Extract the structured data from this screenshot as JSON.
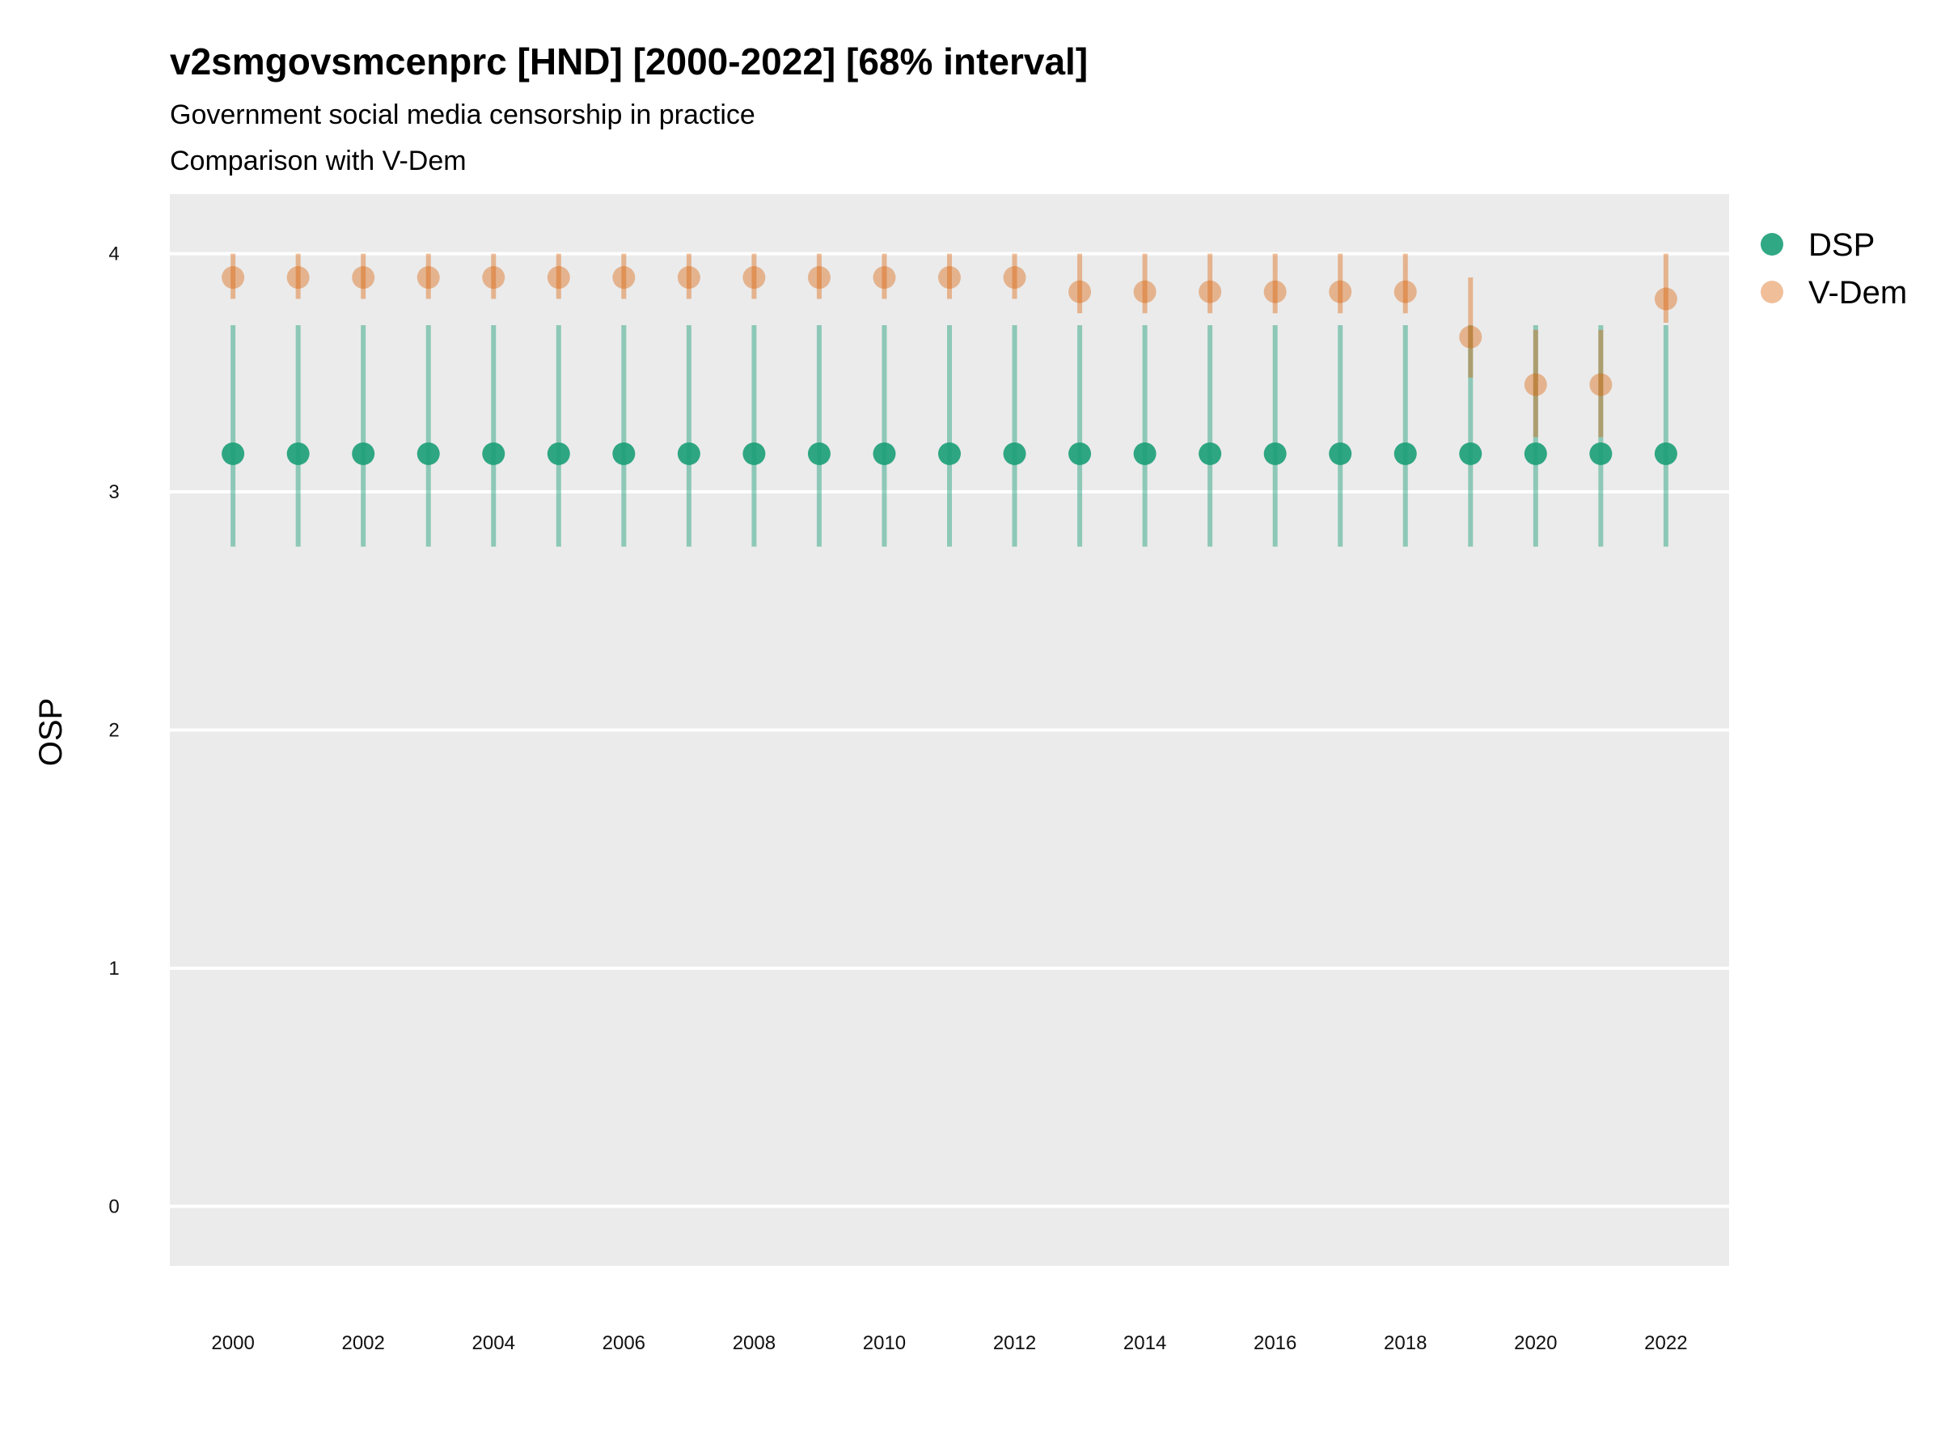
{
  "chart_data": {
    "type": "scatter",
    "title": "v2smgovsmcenprc [HND] [2000-2022] [68% interval]",
    "subtitle": "Government social media censorship in practice",
    "subtitle2": "Comparison with V-Dem",
    "xlabel": "",
    "ylabel": "OSP",
    "ylim": [
      -0.25,
      4.25
    ],
    "yticks": [
      0,
      1,
      2,
      3,
      4
    ],
    "xticks": [
      2000,
      2002,
      2004,
      2006,
      2008,
      2010,
      2012,
      2014,
      2016,
      2018,
      2020,
      2022
    ],
    "grid": true,
    "legend_position": "right",
    "series": [
      {
        "name": "DSP",
        "color": "#1b9e77",
        "x": [
          2000,
          2001,
          2002,
          2003,
          2004,
          2005,
          2006,
          2007,
          2008,
          2009,
          2010,
          2011,
          2012,
          2013,
          2014,
          2015,
          2016,
          2017,
          2018,
          2019,
          2020,
          2021,
          2022
        ],
        "values": [
          3.16,
          3.16,
          3.16,
          3.16,
          3.16,
          3.16,
          3.16,
          3.16,
          3.16,
          3.16,
          3.16,
          3.16,
          3.16,
          3.16,
          3.16,
          3.16,
          3.16,
          3.16,
          3.16,
          3.16,
          3.16,
          3.16,
          3.16
        ],
        "lower": [
          2.77,
          2.77,
          2.77,
          2.77,
          2.77,
          2.77,
          2.77,
          2.77,
          2.77,
          2.77,
          2.77,
          2.77,
          2.77,
          2.77,
          2.77,
          2.77,
          2.77,
          2.77,
          2.77,
          2.77,
          2.77,
          2.77,
          2.77
        ],
        "upper": [
          3.7,
          3.7,
          3.7,
          3.7,
          3.7,
          3.7,
          3.7,
          3.7,
          3.7,
          3.7,
          3.7,
          3.7,
          3.7,
          3.7,
          3.7,
          3.7,
          3.7,
          3.7,
          3.7,
          3.7,
          3.7,
          3.7,
          3.7
        ]
      },
      {
        "name": "V-Dem",
        "color": "#d95f02",
        "x": [
          2000,
          2001,
          2002,
          2003,
          2004,
          2005,
          2006,
          2007,
          2008,
          2009,
          2010,
          2011,
          2012,
          2013,
          2014,
          2015,
          2016,
          2017,
          2018,
          2019,
          2020,
          2021,
          2022
        ],
        "values": [
          3.9,
          3.9,
          3.9,
          3.9,
          3.9,
          3.9,
          3.9,
          3.9,
          3.9,
          3.9,
          3.9,
          3.9,
          3.9,
          3.84,
          3.84,
          3.84,
          3.84,
          3.84,
          3.84,
          3.65,
          3.45,
          3.45,
          3.81
        ],
        "lower": [
          3.81,
          3.81,
          3.81,
          3.81,
          3.81,
          3.81,
          3.81,
          3.81,
          3.81,
          3.81,
          3.81,
          3.81,
          3.81,
          3.75,
          3.75,
          3.75,
          3.75,
          3.75,
          3.75,
          3.48,
          3.23,
          3.23,
          3.71
        ],
        "upper": [
          4.0,
          4.0,
          4.0,
          4.0,
          4.0,
          4.0,
          4.0,
          4.0,
          4.0,
          4.0,
          4.0,
          4.0,
          4.0,
          4.0,
          4.0,
          4.0,
          4.0,
          4.0,
          4.0,
          3.9,
          3.68,
          3.68,
          4.0
        ]
      }
    ]
  }
}
